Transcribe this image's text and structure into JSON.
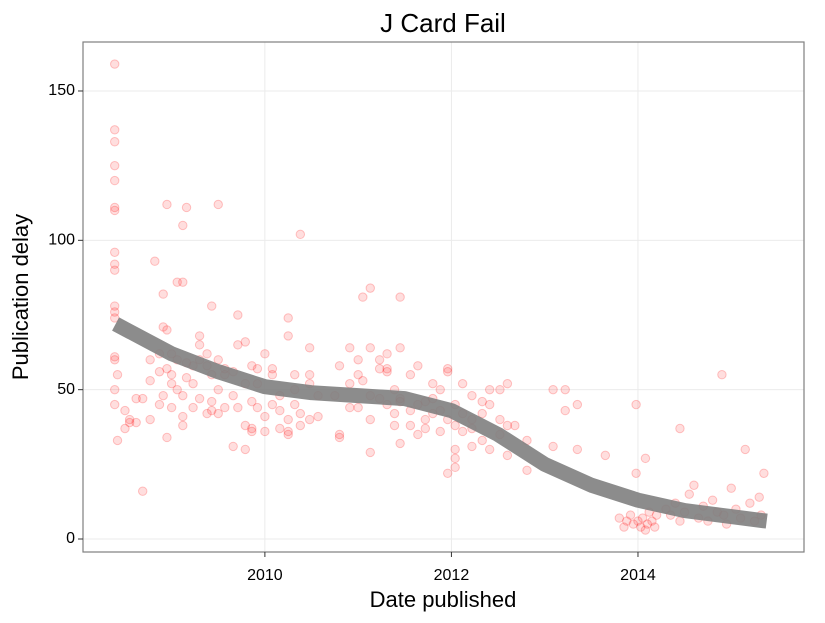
{
  "chart_data": {
    "type": "scatter",
    "title": "J Card Fail",
    "x_label": "Date published",
    "y_label": "Publication delay",
    "xlim": [
      2008.05,
      2015.78
    ],
    "ylim": [
      -4.35,
      166.4
    ],
    "xticks": [
      2010,
      2012,
      2014
    ],
    "yticks": [
      0,
      50,
      100,
      150
    ],
    "grid": true,
    "color": "#ff0000",
    "x": [
      2008.39,
      2008.39,
      2008.39,
      2008.39,
      2008.39,
      2008.39,
      2008.39,
      2008.39,
      2008.39,
      2008.39,
      2008.39,
      2008.39,
      2008.39,
      2008.39,
      2008.39,
      2008.39,
      2008.39,
      2008.42,
      2008.42,
      2008.5,
      2008.5,
      2008.55,
      2008.55,
      2008.62,
      2008.62,
      2008.69,
      2008.69,
      2008.77,
      2008.77,
      2008.77,
      2008.82,
      2008.87,
      2008.87,
      2008.87,
      2008.91,
      2008.91,
      2008.91,
      2008.95,
      2008.95,
      2008.95,
      2008.95,
      2009.0,
      2009.0,
      2009.0,
      2009.0,
      2009.06,
      2009.06,
      2009.06,
      2009.12,
      2009.12,
      2009.12,
      2009.12,
      2009.12,
      2009.16,
      2009.16,
      2009.16,
      2009.23,
      2009.23,
      2009.23,
      2009.3,
      2009.3,
      2009.3,
      2009.3,
      2009.38,
      2009.38,
      2009.38,
      2009.43,
      2009.43,
      2009.43,
      2009.43,
      2009.5,
      2009.5,
      2009.5,
      2009.5,
      2009.57,
      2009.57,
      2009.57,
      2009.66,
      2009.66,
      2009.66,
      2009.71,
      2009.71,
      2009.71,
      2009.79,
      2009.79,
      2009.79,
      2009.79,
      2009.86,
      2009.86,
      2009.86,
      2009.86,
      2009.92,
      2009.92,
      2009.92,
      2010.0,
      2010.0,
      2010.0,
      2010.08,
      2010.08,
      2010.08,
      2010.16,
      2010.16,
      2010.16,
      2010.25,
      2010.25,
      2010.25,
      2010.25,
      2010.25,
      2010.32,
      2010.32,
      2010.32,
      2010.38,
      2010.38,
      2010.38,
      2010.48,
      2010.48,
      2010.48,
      2010.48,
      2010.57,
      2010.57,
      2010.75,
      2010.8,
      2010.8,
      2010.8,
      2010.91,
      2010.91,
      2010.91,
      2011.0,
      2011.0,
      2011.0,
      2011.05,
      2011.05,
      2011.13,
      2011.13,
      2011.13,
      2011.13,
      2011.13,
      2011.23,
      2011.23,
      2011.23,
      2011.31,
      2011.31,
      2011.31,
      2011.31,
      2011.39,
      2011.39,
      2011.39,
      2011.45,
      2011.45,
      2011.45,
      2011.45,
      2011.45,
      2011.56,
      2011.56,
      2011.56,
      2011.64,
      2011.64,
      2011.64,
      2011.72,
      2011.72,
      2011.72,
      2011.8,
      2011.8,
      2011.8,
      2011.88,
      2011.88,
      2011.88,
      2011.96,
      2011.96,
      2011.96,
      2011.96,
      2012.04,
      2012.04,
      2012.04,
      2012.04,
      2012.04,
      2012.12,
      2012.12,
      2012.12,
      2012.22,
      2012.22,
      2012.22,
      2012.22,
      2012.33,
      2012.33,
      2012.33,
      2012.41,
      2012.41,
      2012.41,
      2012.52,
      2012.52,
      2012.52,
      2012.6,
      2012.6,
      2012.6,
      2012.68,
      2012.81,
      2012.81,
      2013.09,
      2013.09,
      2013.22,
      2013.22,
      2013.35,
      2013.35,
      2013.65,
      2013.98,
      2013.98,
      2013.8,
      2013.85,
      2013.88,
      2013.92,
      2013.95,
      2014.0,
      2014.03,
      2014.05,
      2014.08,
      2014.1,
      2014.12,
      2014.15,
      2014.18,
      2014.2,
      2014.08,
      2014.3,
      2014.35,
      2014.4,
      2014.45,
      2014.45,
      2014.5,
      2014.55,
      2014.6,
      2014.65,
      2014.7,
      2014.75,
      2014.8,
      2014.85,
      2014.9,
      2014.92,
      2014.95,
      2015.0,
      2015.05,
      2015.1,
      2015.15,
      2015.2,
      2015.25,
      2015.3,
      2015.35,
      2015.32
    ],
    "values": [
      159,
      137,
      133,
      125,
      120,
      111,
      110,
      96,
      92,
      90,
      78,
      76,
      74,
      61,
      60,
      50,
      45,
      55,
      33,
      43,
      37,
      39,
      40,
      39,
      47,
      16,
      47,
      53,
      60,
      40,
      93,
      56,
      45,
      62,
      82,
      71,
      48,
      70,
      112,
      34,
      57,
      55,
      62,
      52,
      44,
      86,
      50,
      60,
      105,
      86,
      48,
      38,
      41,
      111,
      59,
      54,
      58,
      44,
      52,
      65,
      68,
      47,
      60,
      62,
      42,
      58,
      78,
      55,
      43,
      46,
      112,
      50,
      42,
      60,
      57,
      55,
      44,
      31,
      48,
      56,
      75,
      65,
      44,
      66,
      52,
      38,
      30,
      37,
      36,
      58,
      46,
      52,
      44,
      57,
      41,
      36,
      62,
      57,
      45,
      55,
      43,
      37,
      48,
      74,
      36,
      35,
      40,
      68,
      55,
      50,
      45,
      102,
      42,
      38,
      55,
      52,
      40,
      64,
      41,
      48,
      48,
      34,
      35,
      58,
      64,
      44,
      52,
      60,
      55,
      44,
      81,
      53,
      84,
      64,
      29,
      40,
      48,
      60,
      57,
      47,
      57,
      56,
      45,
      62,
      42,
      38,
      50,
      81,
      64,
      47,
      32,
      46,
      55,
      43,
      38,
      35,
      45,
      58,
      37,
      40,
      46,
      42,
      47,
      52,
      36,
      43,
      50,
      57,
      56,
      22,
      40,
      38,
      30,
      45,
      27,
      24,
      52,
      42,
      36,
      48,
      37,
      40,
      31,
      42,
      33,
      46,
      30,
      50,
      45,
      50,
      35,
      40,
      52,
      38,
      28,
      38,
      23,
      33,
      50,
      31,
      50,
      43,
      45,
      30,
      28,
      45,
      22,
      7,
      4,
      6,
      8,
      5,
      6,
      4,
      7,
      3,
      5,
      9,
      6,
      4,
      8,
      27,
      10,
      8,
      12,
      6,
      37,
      9,
      15,
      18,
      7,
      11,
      6,
      13,
      9,
      55,
      8,
      5,
      17,
      10,
      7,
      30,
      12,
      6,
      14,
      22,
      8
    ],
    "smooth": {
      "color": "#808080",
      "x": [
        2008.4,
        2009.0,
        2009.5,
        2010.0,
        2010.5,
        2011.0,
        2011.5,
        2012.0,
        2012.5,
        2013.0,
        2013.5,
        2014.0,
        2014.5,
        2015.0,
        2015.38
      ],
      "values": [
        72,
        62,
        56,
        51,
        49,
        48,
        47,
        43,
        35,
        25,
        18,
        13,
        9.5,
        7.5,
        6
      ]
    }
  }
}
